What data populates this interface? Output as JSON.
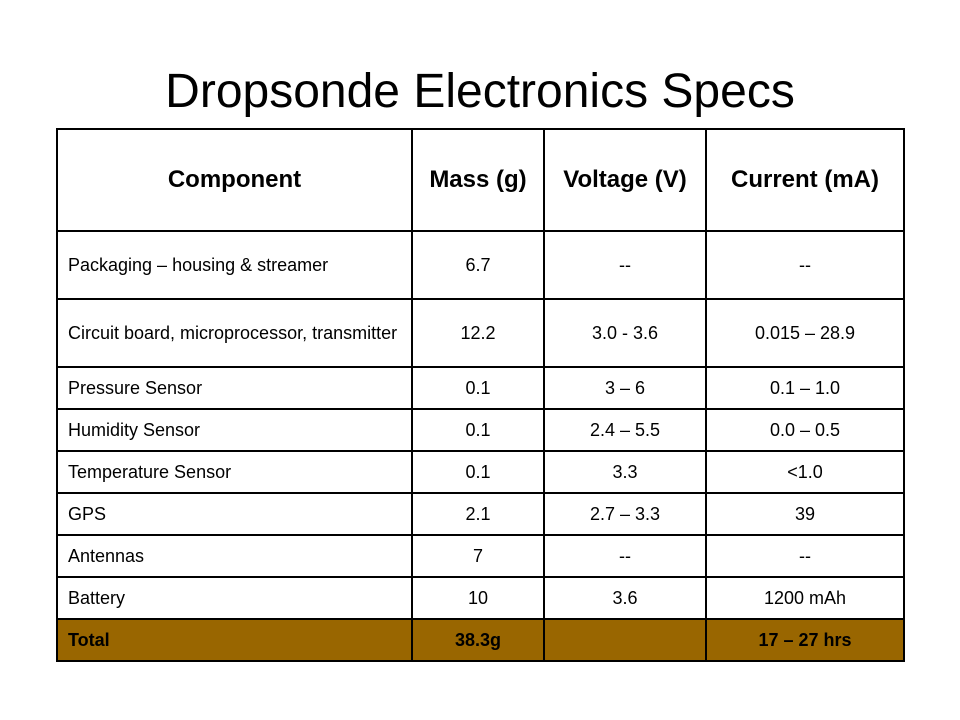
{
  "title": "Dropsonde Electronics Specs",
  "table": {
    "headers": [
      "Component",
      "Mass (g)",
      "Voltage (V)",
      "Current (mA)"
    ],
    "rows": [
      {
        "component": "Packaging – housing & streamer",
        "mass": "6.7",
        "voltage": "--",
        "current": "--"
      },
      {
        "component": "Circuit board, microprocessor, transmitter",
        "mass": "12.2",
        "voltage": "3.0 - 3.6",
        "current": "0.015 – 28.9"
      },
      {
        "component": "Pressure Sensor",
        "mass": "0.1",
        "voltage": "3 – 6",
        "current": "0.1 – 1.0"
      },
      {
        "component": "Humidity Sensor",
        "mass": "0.1",
        "voltage": "2.4 – 5.5",
        "current": "0.0 – 0.5"
      },
      {
        "component": "Temperature Sensor",
        "mass": "0.1",
        "voltage": "3.3",
        "current": "<1.0"
      },
      {
        "component": "GPS",
        "mass": "2.1",
        "voltage": "2.7 – 3.3",
        "current": "39"
      },
      {
        "component": "Antennas",
        "mass": "7",
        "voltage": "--",
        "current": "--"
      },
      {
        "component": "Battery",
        "mass": "10",
        "voltage": "3.6",
        "current": "1200 mAh"
      }
    ],
    "total": {
      "label": "Total",
      "mass": "38.3g",
      "voltage": "",
      "current": "17 – 27 hrs"
    },
    "total_color": "#996600"
  }
}
